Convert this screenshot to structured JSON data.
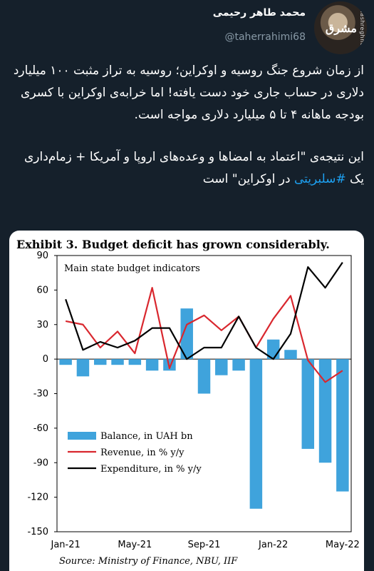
{
  "user": {
    "display_name": "محمد طاهر رحیمی",
    "handle": "@taherrahimi68",
    "avatar_watermark": "mashreghnews.ir",
    "avatar_logo": "مشرق"
  },
  "tweet": {
    "paragraph1": "از زمان شروع جنگ روسیه و اوکراین؛ روسیه به تراز مثبت ۱۰۰ میلیارد دلاری در حساب جاری خود دست یافته! اما خرابه‌ی اوکراین با کسری بودجه ماهانه ۴ تا ۵ میلیارد دلاری مواجه است.",
    "paragraph2_before": "این نتیجه‌ی \"اعتماد به امضاها و وعده‌های اروپا و آمریکا + زمام‌داری یک ",
    "hashtag": "#سلبریتی",
    "paragraph2_after": " در اوکراین\" است"
  },
  "chart_data": {
    "type": "bar",
    "title": "Exhibit 3. Budget deficit has grown considerably.",
    "subtitle": "Main state budget indicators",
    "source": "Source: Ministry of Finance, NBU, IIF",
    "categories": [
      "Jan-21",
      "Feb-21",
      "Mar-21",
      "Apr-21",
      "May-21",
      "Jun-21",
      "Jul-21",
      "Aug-21",
      "Sep-21",
      "Oct-21",
      "Nov-21",
      "Dec-21",
      "Jan-22",
      "Feb-22",
      "Mar-22",
      "Apr-22",
      "May-22"
    ],
    "x_tick_labels": [
      "Jan-21",
      "May-21",
      "Sep-21",
      "Jan-22",
      "May-22"
    ],
    "y_ticks": [
      90,
      60,
      30,
      0,
      -30,
      -60,
      -90,
      -120,
      -150
    ],
    "ylim": [
      -150,
      90
    ],
    "series": [
      {
        "name": "Balance, in UAH bn",
        "kind": "bar",
        "color": "#3fa3dc",
        "values": [
          -5,
          -15,
          -5,
          -5,
          -5,
          -10,
          -10,
          44,
          -30,
          -14,
          -10,
          -130,
          17,
          8,
          -78,
          -90,
          -115
        ]
      },
      {
        "name": "Revenue, in % y/y",
        "kind": "line",
        "color": "#d9272e",
        "values": [
          33,
          30,
          10,
          24,
          5,
          62,
          -8,
          30,
          38,
          25,
          37,
          10,
          35,
          55,
          -1,
          -20,
          -10
        ]
      },
      {
        "name": "Expenditure, in % y/y",
        "kind": "line",
        "color": "#000000",
        "values": [
          52,
          8,
          15,
          10,
          16,
          27,
          27,
          0,
          10,
          10,
          37,
          10,
          0,
          22,
          80,
          62,
          84
        ]
      }
    ],
    "grid": false,
    "legend_position": "bottom-left"
  }
}
